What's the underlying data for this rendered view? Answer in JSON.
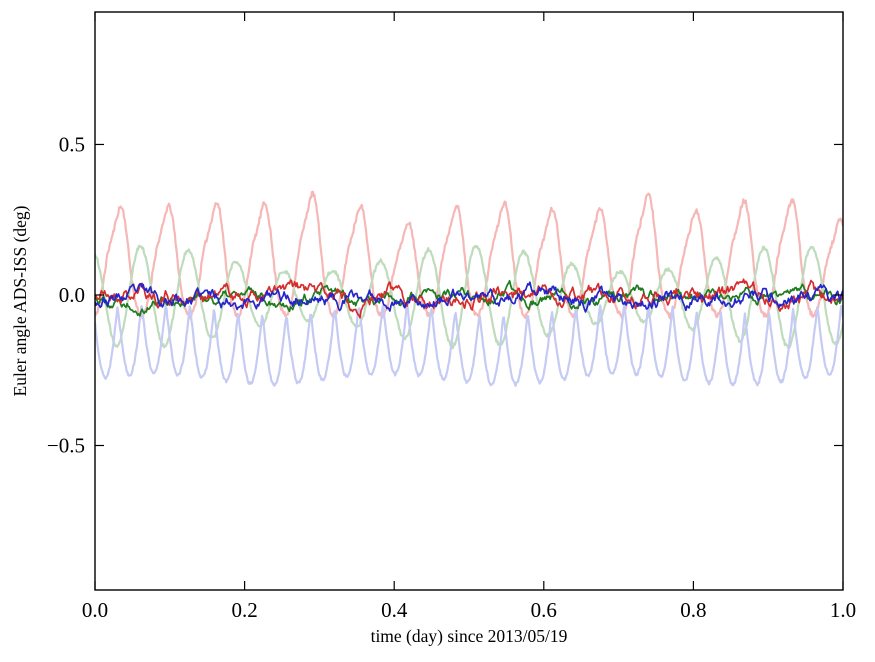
{
  "chart_data": {
    "type": "line",
    "title": "",
    "xlabel": "time (day) since 2013/05/19",
    "ylabel": "Euler angle ADS-ISS (deg)",
    "xlim": [
      0.0,
      1.0
    ],
    "ylim": [
      -0.98,
      0.94
    ],
    "grid": false,
    "legend": "none",
    "axes_color": "#000000",
    "xticks": [
      {
        "value": 0.0,
        "label": "0.0"
      },
      {
        "value": 0.2,
        "label": "0.2"
      },
      {
        "value": 0.4,
        "label": "0.4"
      },
      {
        "value": 0.6,
        "label": "0.6"
      },
      {
        "value": 0.8,
        "label": "0.8"
      },
      {
        "value": 1.0,
        "label": "1.0"
      }
    ],
    "yticks": [
      {
        "value": 0.5,
        "label": "0.5"
      },
      {
        "value": 0.0,
        "label": "0.0"
      },
      {
        "value": -0.5,
        "label": "−0.5"
      }
    ],
    "series": [
      {
        "id": "light-red-periodic",
        "kind": "spike",
        "color": "#f5b8b6",
        "width": 2.2,
        "seed": 11,
        "base": -0.075,
        "amp": 0.36,
        "freq": 15.6,
        "peak_center": 0.55,
        "peak_width": 0.15,
        "shoulder_center": 0.27,
        "shoulder_width": 0.11,
        "shoulder_frac": 0.42,
        "amp_jitter": 0.35,
        "noise": 0.008,
        "approx_range": [
          -0.09,
          0.35
        ]
      },
      {
        "id": "light-green-periodic",
        "kind": "sinemod",
        "color": "#bedcbb",
        "width": 2.2,
        "seed": 12,
        "base": -0.005,
        "amp": 0.125,
        "freq": 15.6,
        "phase": 1.9,
        "mod_depth": 0.35,
        "mod_freq": 2.3,
        "mod_phase": 0.6,
        "noise": 0.006,
        "approx_range": [
          -0.17,
          0.18
        ]
      },
      {
        "id": "light-blue-periodic",
        "kind": "abssine",
        "color": "#c5cbf3",
        "width": 2.2,
        "seed": 13,
        "base": -0.045,
        "amp": 0.235,
        "humps": 31,
        "phase": 0.2,
        "wobble": 0.018,
        "wobble_freq": 3.2,
        "noise": 0.005,
        "approx_range": [
          -0.29,
          -0.03
        ]
      },
      {
        "id": "green-residual",
        "kind": "noise",
        "color": "#1e7b1e",
        "width": 1.7,
        "seed": 22,
        "base": -0.008,
        "sigma": 0.013,
        "smooth": 0.9,
        "clip": 0.075,
        "approx_range": [
          -0.06,
          0.05
        ]
      },
      {
        "id": "red-residual",
        "kind": "noise",
        "color": "#d62c2c",
        "width": 1.7,
        "seed": 21,
        "base": 0.0,
        "sigma": 0.017,
        "smooth": 0.9,
        "clip": 0.095,
        "approx_range": [
          -0.07,
          0.09
        ]
      },
      {
        "id": "blue-residual",
        "kind": "noise",
        "color": "#2526c9",
        "width": 1.7,
        "seed": 23,
        "base": -0.01,
        "sigma": 0.015,
        "smooth": 0.9,
        "clip": 0.085,
        "approx_range": [
          -0.07,
          0.05
        ]
      }
    ]
  }
}
